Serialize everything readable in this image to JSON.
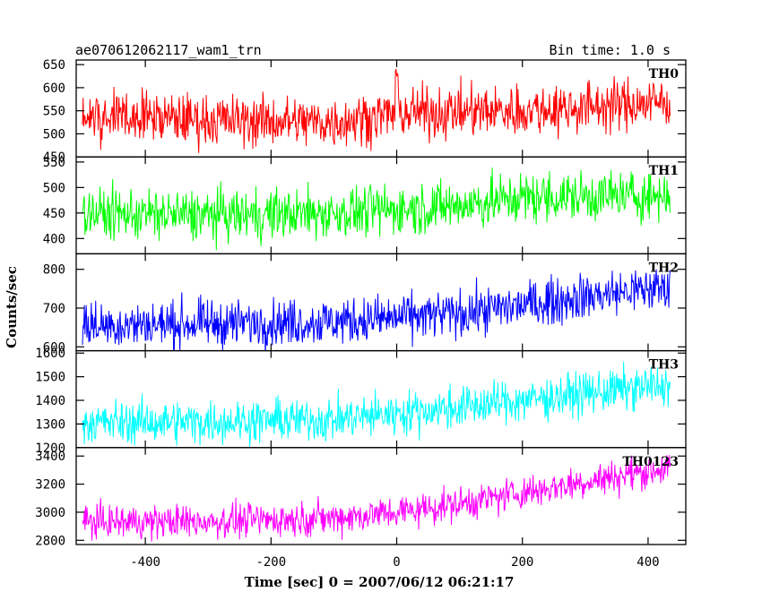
{
  "header": {
    "title_left": "ae070612062117_wam1_trn",
    "title_right": "Bin time: 1.0 s"
  },
  "chart_data": {
    "type": "line",
    "xlabel": "Time [sec] 0 = 2007/06/12 06:21:17",
    "ylabel": "Counts/sec",
    "xlim": [
      -510,
      460
    ],
    "xticks": [
      -400,
      -200,
      0,
      200,
      400
    ],
    "x_range": [
      -500,
      435
    ],
    "bin_time_s": 1.0,
    "panels": [
      {
        "name": "TH0",
        "color": "#ff0000",
        "ylim": [
          450,
          660
        ],
        "yticks": [
          450,
          500,
          550,
          600,
          650
        ],
        "baseline": [
          [
            -500,
            540
          ],
          [
            -300,
            530
          ],
          [
            -100,
            525
          ],
          [
            0,
            545
          ],
          [
            200,
            550
          ],
          [
            435,
            570
          ]
        ],
        "noise": 28,
        "spikes": [
          [
            0,
            650
          ]
        ]
      },
      {
        "name": "TH1",
        "color": "#00ff00",
        "ylim": [
          370,
          560
        ],
        "yticks": [
          400,
          450,
          500,
          550
        ],
        "baseline": [
          [
            -500,
            450
          ],
          [
            -300,
            445
          ],
          [
            -100,
            450
          ],
          [
            100,
            465
          ],
          [
            200,
            480
          ],
          [
            435,
            485
          ]
        ],
        "noise": 25,
        "spikes": []
      },
      {
        "name": "TH2",
        "color": "#0000ff",
        "ylim": [
          590,
          840
        ],
        "yticks": [
          600,
          700,
          800
        ],
        "baseline": [
          [
            -500,
            655
          ],
          [
            -300,
            660
          ],
          [
            -100,
            665
          ],
          [
            100,
            685
          ],
          [
            300,
            730
          ],
          [
            435,
            755
          ]
        ],
        "noise": 30,
        "spikes": []
      },
      {
        "name": "TH3",
        "color": "#00ffff",
        "ylim": [
          1200,
          1610
        ],
        "yticks": [
          1200,
          1300,
          1400,
          1500,
          1600
        ],
        "baseline": [
          [
            -500,
            1305
          ],
          [
            -300,
            1310
          ],
          [
            -100,
            1320
          ],
          [
            100,
            1370
          ],
          [
            300,
            1430
          ],
          [
            435,
            1465
          ]
        ],
        "noise": 45,
        "spikes": []
      },
      {
        "name": "TH0123",
        "color": "#ff00ff",
        "ylim": [
          2770,
          3460
        ],
        "yticks": [
          2800,
          3000,
          3200,
          3400
        ],
        "baseline": [
          [
            -500,
            2930
          ],
          [
            -300,
            2935
          ],
          [
            -100,
            2960
          ],
          [
            0,
            3000
          ],
          [
            100,
            3060
          ],
          [
            250,
            3180
          ],
          [
            435,
            3320
          ]
        ],
        "noise": 60,
        "spikes": []
      }
    ]
  }
}
